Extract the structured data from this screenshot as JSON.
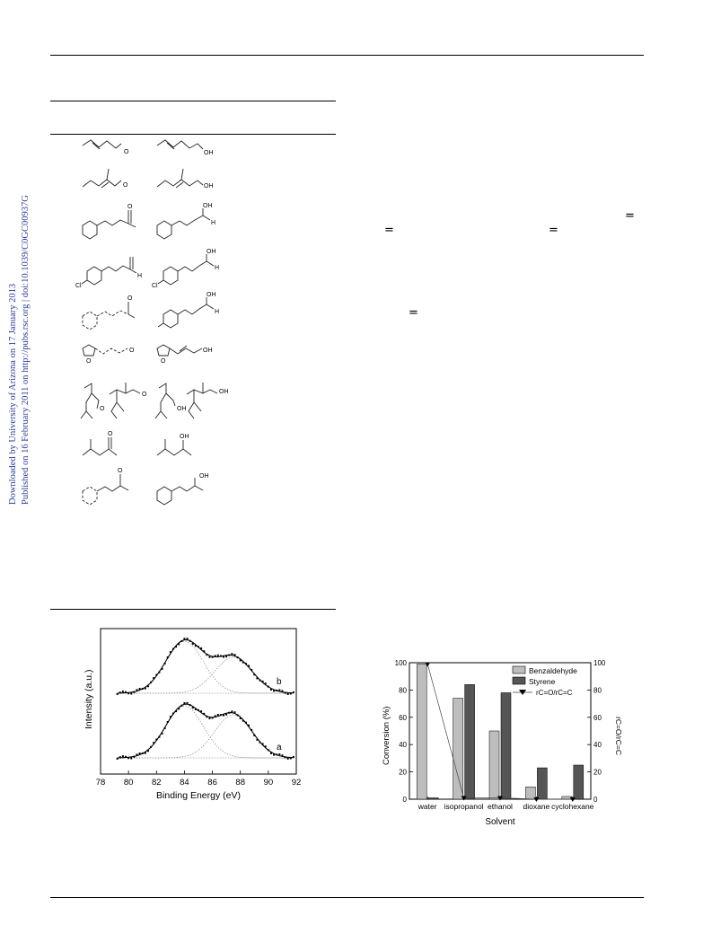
{
  "side_note": {
    "line1": "Downloaded by University of Arizona on 17 January 2013",
    "line2": "Published on 16 February 2011 on http://pubs.rsc.org | doi:10.1039/C0GC00937G"
  },
  "equals_signs": [
    "=",
    "=",
    "=",
    "="
  ],
  "molecules": {
    "oh_label": "OH",
    "o_label": "O",
    "h_label": "H",
    "cl_label": "Cl"
  },
  "xps_chart": {
    "chart_data": {
      "type": "line",
      "xlabel": "Binding Energy (eV)",
      "ylabel": "Intensity (a.u.)",
      "xlim": [
        78,
        92
      ],
      "x_ticks": [
        "78",
        "80",
        "82",
        "84",
        "86",
        "88",
        "90",
        "92"
      ],
      "series": [
        {
          "name": "a",
          "peaks_eV": [
            84.0,
            87.5
          ]
        },
        {
          "name": "b",
          "peaks_eV": [
            84.0,
            87.5
          ]
        }
      ],
      "curve_labels": [
        "a",
        "b"
      ]
    }
  },
  "solvent_chart": {
    "chart_data": {
      "type": "bar",
      "categories": [
        "water",
        "isopropanol",
        "ethanol",
        "dioxane",
        "cyclohexane"
      ],
      "series": [
        {
          "name": "Benzaldehyde",
          "color": "#bdbdbd",
          "values": [
            99,
            74,
            50,
            9,
            2
          ]
        },
        {
          "name": "Styrene",
          "color": "#555555",
          "values": [
            1,
            84,
            78,
            23,
            25
          ]
        }
      ],
      "ratio_series": {
        "name": "rC=O/rC=C",
        "values": [
          99,
          1,
          1,
          0,
          0
        ]
      },
      "xlabel": "Solvent",
      "ylabel": "Conversion (%)",
      "y2label": "rC=O/rC=C",
      "ylim": [
        0,
        100
      ],
      "y2lim": [
        0,
        100
      ],
      "y_ticks": [
        "0",
        "20",
        "40",
        "60",
        "80",
        "100"
      ],
      "legend": "top-right"
    }
  }
}
